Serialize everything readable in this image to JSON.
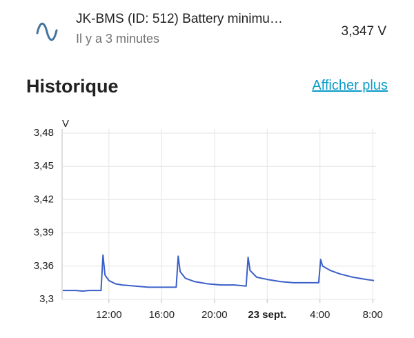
{
  "header": {
    "title": "JK-BMS (ID: 512) Battery minimu…",
    "subtitle": "Il y a 3 minutes",
    "state": "3,347 V"
  },
  "section": {
    "title": "Historique",
    "link": "Afficher plus"
  },
  "chart_data": {
    "type": "line",
    "y_unit": "V",
    "x": [
      8.5,
      9,
      9.5,
      10,
      10.5,
      11,
      11.4,
      11.55,
      11.7,
      12,
      12.5,
      13,
      14,
      15,
      16,
      17,
      17.1,
      17.25,
      17.4,
      17.8,
      18.5,
      19.5,
      20.5,
      21.5,
      22.4,
      22.55,
      22.7,
      23.2,
      24,
      25,
      26,
      27,
      27.9,
      28.05,
      28.2,
      28.8,
      29.5,
      30.5,
      31.5,
      32.1
    ],
    "series": [
      {
        "name": "JK-BMS (ID: 512) Battery minimu…",
        "color": "#3a5fc8",
        "values": [
          3.338,
          3.338,
          3.338,
          3.3375,
          3.338,
          3.338,
          3.338,
          3.37,
          3.352,
          3.347,
          3.344,
          3.343,
          3.342,
          3.341,
          3.341,
          3.341,
          3.341,
          3.369,
          3.355,
          3.349,
          3.346,
          3.344,
          3.343,
          3.343,
          3.342,
          3.368,
          3.356,
          3.35,
          3.348,
          3.346,
          3.345,
          3.345,
          3.345,
          3.366,
          3.36,
          3.356,
          3.353,
          3.35,
          3.348,
          3.347
        ]
      }
    ],
    "xlim": [
      8.45,
      32.25
    ],
    "xticks": [
      {
        "value": 12,
        "label": "12:00"
      },
      {
        "value": 16,
        "label": "16:00"
      },
      {
        "value": 20,
        "label": "20:00"
      },
      {
        "value": 24,
        "label": "23 sept.",
        "bold": true
      },
      {
        "value": 28,
        "label": "4:00"
      },
      {
        "value": 32,
        "label": "8:00"
      }
    ],
    "ylim": [
      3.33,
      3.48
    ],
    "yticks": [
      {
        "value": 3.33,
        "label": "3,3"
      },
      {
        "value": 3.36,
        "label": "3,36"
      },
      {
        "value": 3.39,
        "label": "3,39"
      },
      {
        "value": 3.42,
        "label": "3,42"
      },
      {
        "value": 3.45,
        "label": "3,45"
      },
      {
        "value": 3.48,
        "label": "3,48"
      }
    ],
    "grid": true
  }
}
